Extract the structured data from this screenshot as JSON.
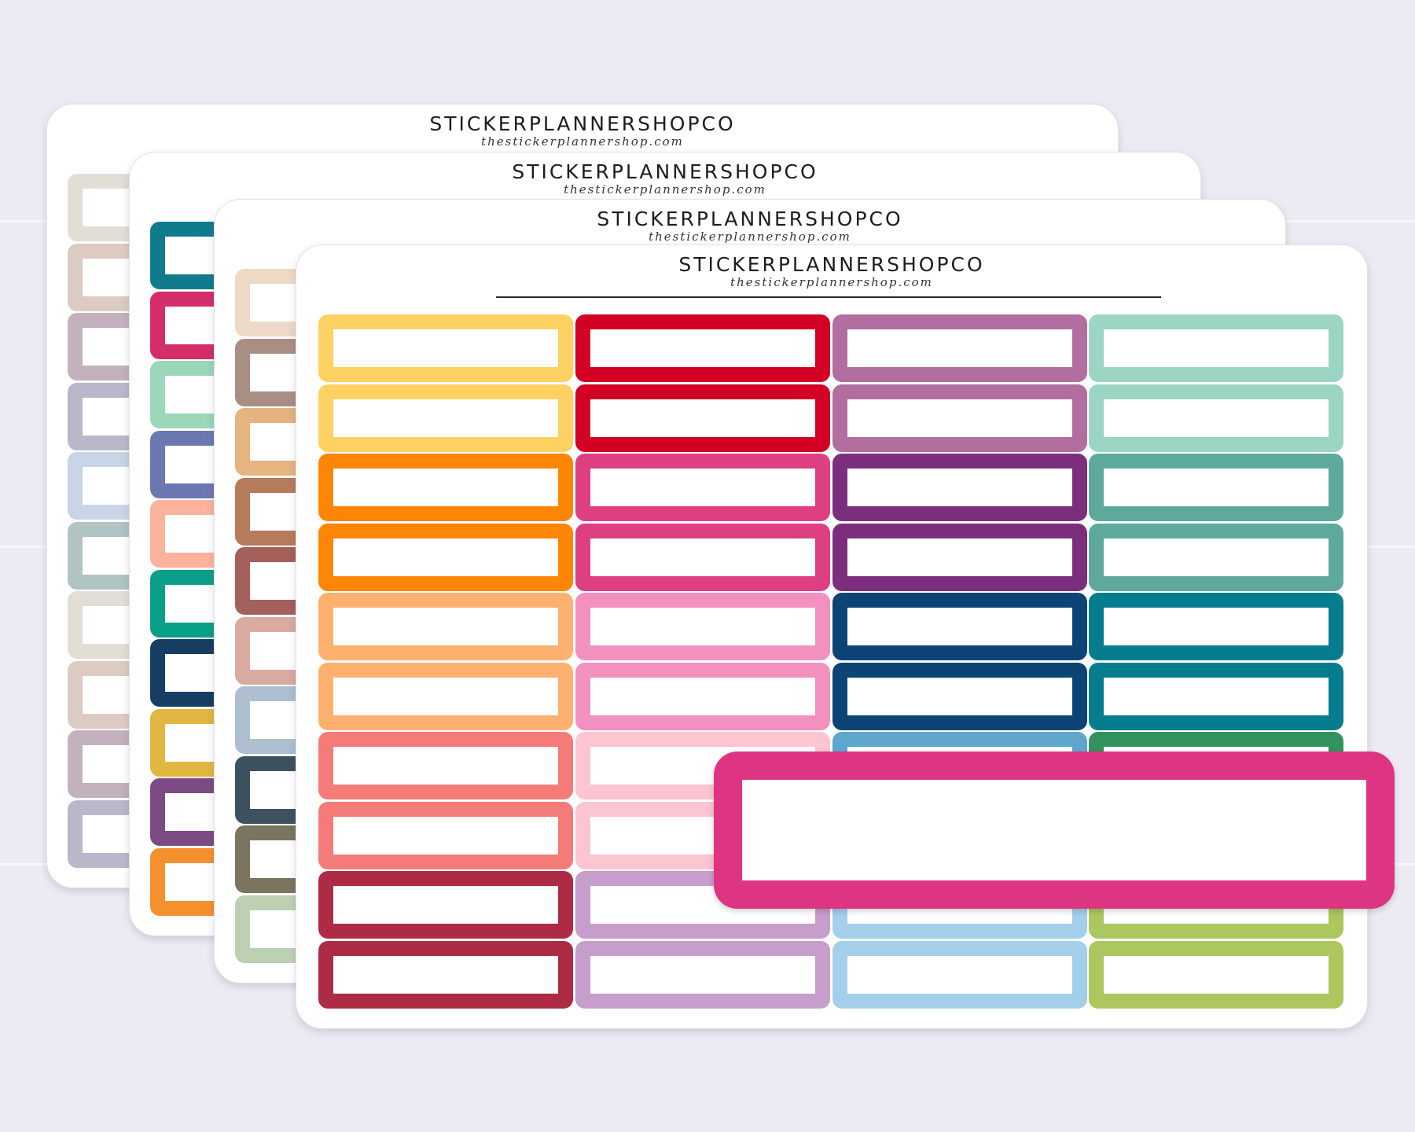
{
  "sheets": [
    {
      "brand": "STICKERPLANNERSHOPCO",
      "url": "thestickerplannershop.com",
      "colors": [
        "#e2ddd5",
        "#dccac3",
        "#c3b1bd",
        "#b9b7ca",
        "#c9d4e7",
        "#b0c4c4",
        "#e2ddd5",
        "#dccac3",
        "#c3b1bd",
        "#b9b7ca"
      ]
    },
    {
      "brand": "STICKERPLANNERSHOPCO",
      "url": "thestickerplannershop.com",
      "colors": [
        "#0f7b8c",
        "#d32e6a",
        "#9bd7b8",
        "#6b78b2",
        "#fdb29d",
        "#0a9f88",
        "#173f63",
        "#e1b742",
        "#7d4b84",
        "#f5902f"
      ]
    },
    {
      "brand": "STICKERPLANNERSHOPCO",
      "url": "thestickerplannershop.com",
      "colors": [
        "#edd9c6",
        "#a98e85",
        "#e5b47f",
        "#b67b5b",
        "#a4605a",
        "#d9aba1",
        "#aebfd2",
        "#3d5261",
        "#7a7460",
        "#bdd0b4"
      ]
    },
    {
      "brand": "STICKERPLANNERSHOPCO",
      "url": "thestickerplannershop.com",
      "columns": [
        [
          "#fdd263",
          "#fdd263",
          "#fe8606",
          "#fe8606",
          "#feb16e",
          "#feb16e",
          "#f57b78",
          "#f57b78",
          "#ad2b45",
          "#ad2b45"
        ],
        [
          "#d10024",
          "#d10024",
          "#de3f82",
          "#de3f82",
          "#f291bf",
          "#f291bf",
          "#fcc5d1",
          "#fcc5d1",
          "#c69dcb",
          "#c69dcb"
        ],
        [
          "#b26e9e",
          "#b26e9e",
          "#7c2e7d",
          "#7c2e7d",
          "#0b4475",
          "#0b4475",
          "#5ea6cd",
          "#5ea6cd",
          "#a3cfea",
          "#a3cfea"
        ],
        [
          "#9cd5c4",
          "#9cd5c4",
          "#5daa9c",
          "#5daa9c",
          "#067d8f",
          "#067d8f",
          "#32935f",
          "#32935f",
          "#abc75e",
          "#abc75e"
        ]
      ]
    }
  ],
  "featured": {
    "color": "#de3583"
  }
}
